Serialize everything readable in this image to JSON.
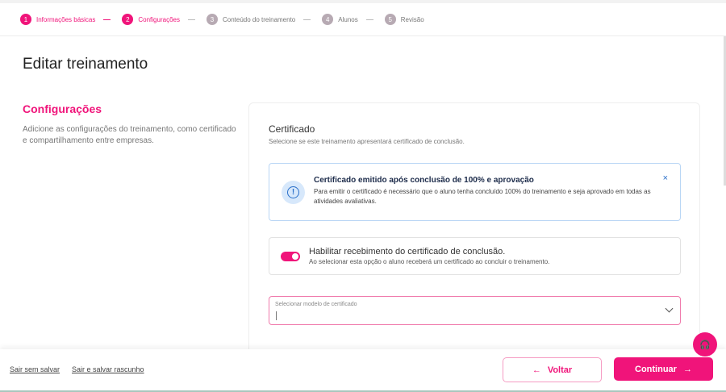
{
  "stepper": [
    {
      "num": "1",
      "label": "Informações básicas",
      "active": true
    },
    {
      "num": "2",
      "label": "Configurações",
      "active": true
    },
    {
      "num": "3",
      "label": "Conteúdo do treinamento",
      "active": false
    },
    {
      "num": "4",
      "label": "Alunos",
      "active": false
    },
    {
      "num": "5",
      "label": "Revisão",
      "active": false
    }
  ],
  "page_title": "Editar treinamento",
  "section": {
    "title": "Configurações",
    "description": "Adicione as configurações do treinamento, como certificado e compartilhamento entre empresas."
  },
  "certificate": {
    "title": "Certificado",
    "subtitle": "Selecione se este treinamento apresentará certificado de conclusão.",
    "alert": {
      "title": "Certificado emitido após conclusão de 100% e aprovação",
      "text": "Para emitir o certificado é necessário que o aluno tenha concluído 100% do treinamento e seja aprovado em todas as atividades avaliativas.",
      "icon": "exclamation-circle-icon",
      "close": "×"
    },
    "toggle": {
      "label": "Habilitar recebimento do certificado de conclusão.",
      "description": "Ao selecionar esta opção o aluno receberá um certificado ao concluir o treinamento.",
      "enabled": true
    },
    "select": {
      "label": "Selecionar modelo de certificado",
      "value": ""
    }
  },
  "footer": {
    "exit_no_save": "Sair sem salvar",
    "exit_save_draft": "Sair e salvar rascunho",
    "back": "Voltar",
    "back_arrow": "←",
    "continue": "Continuar",
    "continue_arrow": "→"
  },
  "colors": {
    "accent": "#f0147a",
    "info": "#2a6fc9"
  }
}
